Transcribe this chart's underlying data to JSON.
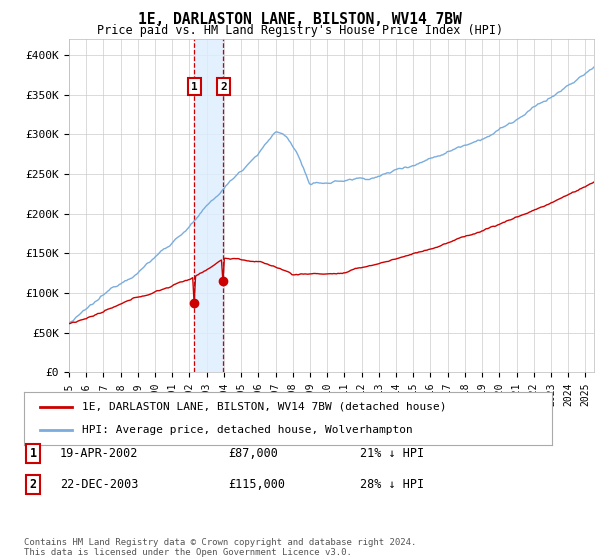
{
  "title": "1E, DARLASTON LANE, BILSTON, WV14 7BW",
  "subtitle": "Price paid vs. HM Land Registry's House Price Index (HPI)",
  "ylim": [
    0,
    420000
  ],
  "yticks": [
    0,
    50000,
    100000,
    150000,
    200000,
    250000,
    300000,
    350000,
    400000
  ],
  "ytick_labels": [
    "£0",
    "£50K",
    "£100K",
    "£150K",
    "£200K",
    "£250K",
    "£300K",
    "£350K",
    "£400K"
  ],
  "xlim_start": 1995.0,
  "xlim_end": 2025.5,
  "purchase1_date": 2002.29,
  "purchase1_price": 87000,
  "purchase1_label": "1",
  "purchase1_text": "19-APR-2002",
  "purchase1_amount": "£87,000",
  "purchase1_hpi": "21% ↓ HPI",
  "purchase2_date": 2003.97,
  "purchase2_price": 115000,
  "purchase2_label": "2",
  "purchase2_text": "22-DEC-2003",
  "purchase2_amount": "£115,000",
  "purchase2_hpi": "28% ↓ HPI",
  "line1_color": "#cc0000",
  "line2_color": "#7aaddd",
  "marker_color": "#cc0000",
  "shade_color": "#ddeeff",
  "vline_color": "#cc0000",
  "legend_label1": "1E, DARLASTON LANE, BILSTON, WV14 7BW (detached house)",
  "legend_label2": "HPI: Average price, detached house, Wolverhampton",
  "footer": "Contains HM Land Registry data © Crown copyright and database right 2024.\nThis data is licensed under the Open Government Licence v3.0.",
  "background_color": "#ffffff",
  "grid_color": "#cccccc"
}
